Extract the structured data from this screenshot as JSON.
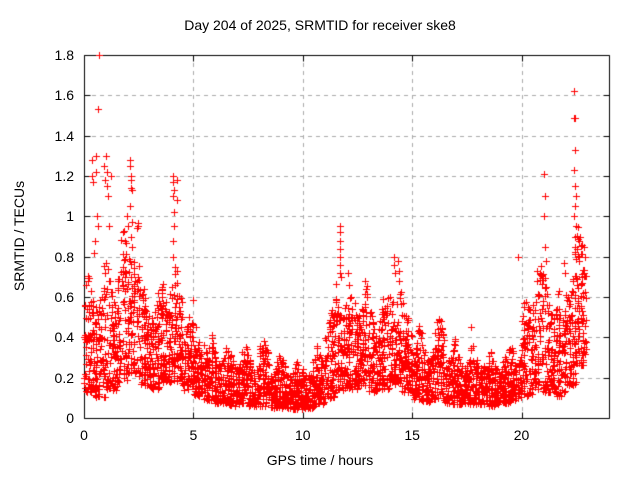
{
  "chart_data": {
    "type": "scatter",
    "title": "Day 204 of 2025, SRMTID for receiver ske8",
    "xlabel": "GPS time / hours",
    "ylabel": "SRMTID / TECUs",
    "xlim": [
      0,
      24
    ],
    "ylim": [
      0,
      1.8
    ],
    "xticks": [
      0,
      5,
      10,
      15,
      20
    ],
    "xtick_labels": [
      "0",
      "5",
      "10",
      "15",
      "20"
    ],
    "yticks": [
      0,
      0.2,
      0.4,
      0.6,
      0.8,
      1.0,
      1.2,
      1.4,
      1.6,
      1.8
    ],
    "ytick_labels": [
      "0",
      "0.2",
      "0.4",
      "0.6",
      "0.8",
      "1",
      "1.2",
      "1.4",
      "1.6",
      "1.8"
    ],
    "grid": true,
    "legend": "none",
    "marker": {
      "glyph": "plus",
      "size": 7,
      "color": "#ff0000"
    },
    "grid_color": "#aaaaaa",
    "border_color": "#000000",
    "background": "#ffffff",
    "seed": 2025204,
    "density_shape": 1.35,
    "wave": {
      "period": 0.8,
      "amp": 0.22,
      "phase": 0
    },
    "bands": [
      [
        0.0,
        0.5,
        0.13,
        0.62,
        85
      ],
      [
        0.5,
        1.0,
        0.1,
        0.66,
        85
      ],
      [
        1.0,
        1.5,
        0.14,
        0.7,
        80
      ],
      [
        1.5,
        2.0,
        0.18,
        0.8,
        80
      ],
      [
        2.0,
        2.5,
        0.22,
        0.92,
        80
      ],
      [
        2.5,
        3.0,
        0.16,
        0.6,
        80
      ],
      [
        3.0,
        3.5,
        0.14,
        0.56,
        80
      ],
      [
        3.5,
        4.0,
        0.18,
        0.7,
        85
      ],
      [
        4.0,
        4.5,
        0.18,
        0.66,
        80
      ],
      [
        4.5,
        5.0,
        0.14,
        0.52,
        75
      ],
      [
        5.0,
        5.5,
        0.11,
        0.42,
        75
      ],
      [
        5.5,
        6.0,
        0.09,
        0.36,
        75
      ],
      [
        6.0,
        6.5,
        0.07,
        0.33,
        75
      ],
      [
        6.5,
        7.0,
        0.06,
        0.29,
        75
      ],
      [
        7.0,
        7.5,
        0.07,
        0.32,
        75
      ],
      [
        7.5,
        8.0,
        0.06,
        0.3,
        75
      ],
      [
        8.0,
        8.5,
        0.06,
        0.33,
        75
      ],
      [
        8.5,
        9.0,
        0.05,
        0.28,
        75
      ],
      [
        9.0,
        9.5,
        0.05,
        0.26,
        75
      ],
      [
        9.5,
        10.0,
        0.04,
        0.25,
        75
      ],
      [
        10.0,
        10.5,
        0.05,
        0.26,
        75
      ],
      [
        10.5,
        11.0,
        0.07,
        0.32,
        75
      ],
      [
        11.0,
        11.5,
        0.1,
        0.48,
        78
      ],
      [
        11.5,
        12.0,
        0.14,
        0.6,
        80
      ],
      [
        12.0,
        12.5,
        0.14,
        0.56,
        80
      ],
      [
        12.5,
        13.0,
        0.16,
        0.62,
        80
      ],
      [
        13.0,
        13.5,
        0.13,
        0.5,
        78
      ],
      [
        13.5,
        14.0,
        0.14,
        0.55,
        78
      ],
      [
        14.0,
        14.5,
        0.17,
        0.68,
        80
      ],
      [
        14.5,
        15.0,
        0.13,
        0.52,
        78
      ],
      [
        15.0,
        15.5,
        0.09,
        0.4,
        75
      ],
      [
        15.5,
        16.0,
        0.08,
        0.35,
        75
      ],
      [
        16.0,
        16.5,
        0.09,
        0.44,
        75
      ],
      [
        16.5,
        17.0,
        0.07,
        0.34,
        75
      ],
      [
        17.0,
        17.5,
        0.07,
        0.3,
        75
      ],
      [
        17.5,
        18.0,
        0.07,
        0.31,
        75
      ],
      [
        18.0,
        18.5,
        0.07,
        0.29,
        75
      ],
      [
        18.5,
        19.0,
        0.06,
        0.28,
        75
      ],
      [
        19.0,
        19.5,
        0.07,
        0.3,
        75
      ],
      [
        19.5,
        20.0,
        0.09,
        0.34,
        75
      ],
      [
        20.0,
        20.5,
        0.11,
        0.52,
        78
      ],
      [
        20.5,
        21.0,
        0.13,
        0.68,
        80
      ],
      [
        21.0,
        21.5,
        0.13,
        0.62,
        80
      ],
      [
        21.5,
        22.0,
        0.11,
        0.58,
        80
      ],
      [
        22.0,
        22.5,
        0.16,
        0.78,
        82
      ],
      [
        22.5,
        22.95,
        0.26,
        0.85,
        85
      ]
    ],
    "spikes": [
      [
        0.68,
        1.8
      ],
      [
        0.64,
        1.53
      ],
      [
        0.35,
        1.28
      ],
      [
        0.36,
        1.2
      ],
      [
        0.42,
        1.17
      ],
      [
        0.55,
        1.3
      ],
      [
        0.56,
        1.22
      ],
      [
        0.6,
        1.0
      ],
      [
        0.62,
        0.95
      ],
      [
        0.5,
        0.88
      ],
      [
        0.45,
        0.82
      ],
      [
        0.9,
        1.25
      ],
      [
        0.95,
        1.18
      ],
      [
        1.0,
        1.3
      ],
      [
        1.05,
        1.22
      ],
      [
        1.06,
        1.15
      ],
      [
        1.1,
        1.1
      ],
      [
        1.15,
        0.95
      ],
      [
        1.25,
        1.2
      ],
      [
        1.95,
        1.0
      ],
      [
        2.0,
        0.95
      ],
      [
        2.1,
        1.28
      ],
      [
        2.12,
        1.25
      ],
      [
        2.15,
        1.2
      ],
      [
        2.17,
        1.18
      ],
      [
        2.15,
        1.14
      ],
      [
        2.2,
        1.13
      ],
      [
        2.1,
        1.05
      ],
      [
        2.18,
        0.97
      ],
      [
        2.14,
        0.9
      ],
      [
        2.2,
        0.85
      ],
      [
        4.05,
        1.2
      ],
      [
        4.08,
        1.17
      ],
      [
        4.1,
        1.13
      ],
      [
        4.06,
        1.1
      ],
      [
        4.1,
        1.02
      ],
      [
        4.12,
        0.95
      ],
      [
        4.09,
        0.88
      ],
      [
        4.05,
        0.8
      ],
      [
        4.15,
        0.75
      ],
      [
        4.25,
        1.18
      ],
      [
        4.27,
        1.08
      ],
      [
        11.68,
        0.95
      ],
      [
        11.7,
        0.92
      ],
      [
        11.69,
        0.88
      ],
      [
        11.71,
        0.84
      ],
      [
        11.7,
        0.8
      ],
      [
        11.72,
        0.76
      ],
      [
        11.68,
        0.72
      ],
      [
        11.73,
        0.7
      ],
      [
        12.05,
        0.72
      ],
      [
        12.1,
        0.66
      ],
      [
        12.85,
        0.68
      ],
      [
        12.9,
        0.64
      ],
      [
        14.15,
        0.8
      ],
      [
        14.18,
        0.76
      ],
      [
        14.2,
        0.72
      ],
      [
        14.35,
        0.78
      ],
      [
        14.38,
        0.73
      ],
      [
        14.4,
        0.68
      ],
      [
        16.3,
        0.48
      ],
      [
        16.35,
        0.44
      ],
      [
        17.7,
        0.45
      ],
      [
        19.85,
        0.8
      ],
      [
        20.7,
        0.73
      ],
      [
        20.72,
        0.68
      ],
      [
        21.05,
        1.21
      ],
      [
        21.07,
        1.1
      ],
      [
        21.05,
        1.0
      ],
      [
        21.06,
        0.85
      ],
      [
        21.1,
        0.78
      ],
      [
        21.95,
        0.77
      ],
      [
        22.0,
        0.72
      ],
      [
        22.4,
        1.62
      ],
      [
        22.42,
        1.49
      ],
      [
        22.46,
        1.49
      ],
      [
        22.44,
        1.33
      ],
      [
        22.42,
        1.23
      ],
      [
        22.45,
        1.15
      ],
      [
        22.48,
        1.1
      ],
      [
        22.44,
        1.05
      ],
      [
        22.41,
        1.0
      ],
      [
        22.5,
        0.95
      ],
      [
        22.46,
        0.9
      ],
      [
        22.43,
        0.85
      ],
      [
        22.85,
        0.85
      ],
      [
        22.9,
        0.8
      ]
    ]
  }
}
